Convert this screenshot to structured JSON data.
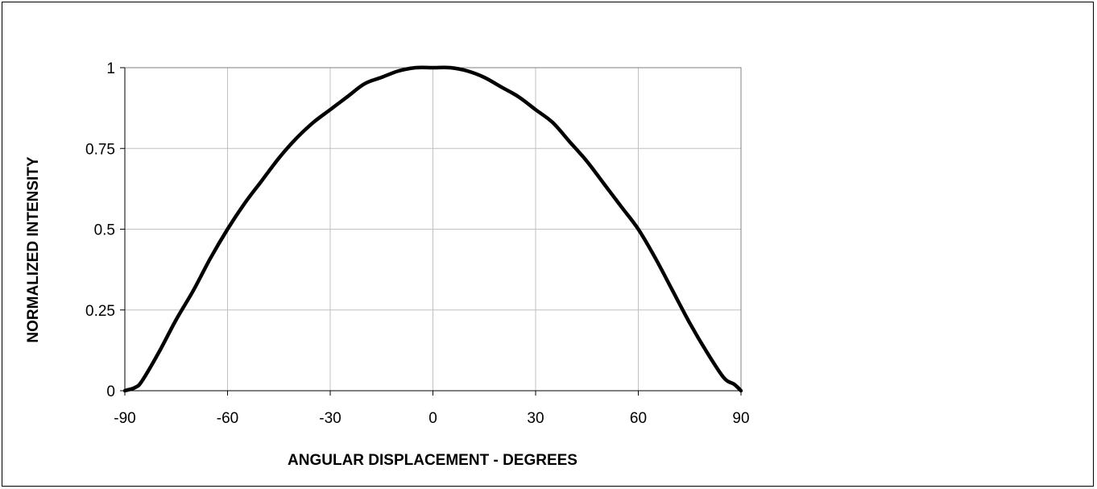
{
  "chart_data": {
    "type": "line",
    "title": "",
    "xlabel": "ANGULAR DISPLACEMENT - DEGREES",
    "ylabel": "NORMALIZED INTENSITY",
    "xlim": [
      -90,
      90
    ],
    "ylim": [
      0,
      1
    ],
    "x_ticks": [
      -90,
      -60,
      -30,
      0,
      30,
      60,
      90
    ],
    "y_ticks": [
      0,
      0.25,
      0.5,
      0.75,
      1
    ],
    "x_tick_labels": [
      "-90",
      "-60",
      "-30",
      "0",
      "30",
      "60",
      "90"
    ],
    "y_tick_labels": [
      "0",
      "0.25",
      "0.5",
      "0.75",
      "1"
    ],
    "grid": true,
    "legend": "none",
    "line_color": "#000000",
    "grid_color": "#c0c0c0",
    "series": [
      {
        "x": [
          -90,
          -87,
          -85,
          -80,
          -75,
          -70,
          -65,
          -60,
          -55,
          -50,
          -45,
          -40,
          -35,
          -30,
          -25,
          -20,
          -15,
          -10,
          -5,
          0,
          5,
          10,
          15,
          20,
          25,
          30,
          35,
          40,
          45,
          50,
          55,
          60,
          65,
          70,
          75,
          80,
          85,
          88,
          90
        ],
        "y": [
          0,
          0.01,
          0.03,
          0.12,
          0.22,
          0.31,
          0.41,
          0.5,
          0.58,
          0.65,
          0.72,
          0.78,
          0.83,
          0.87,
          0.91,
          0.95,
          0.97,
          0.99,
          1.0,
          1.0,
          1.0,
          0.99,
          0.97,
          0.94,
          0.91,
          0.87,
          0.83,
          0.77,
          0.71,
          0.64,
          0.57,
          0.5,
          0.41,
          0.31,
          0.21,
          0.12,
          0.04,
          0.02,
          0.0
        ]
      }
    ]
  }
}
